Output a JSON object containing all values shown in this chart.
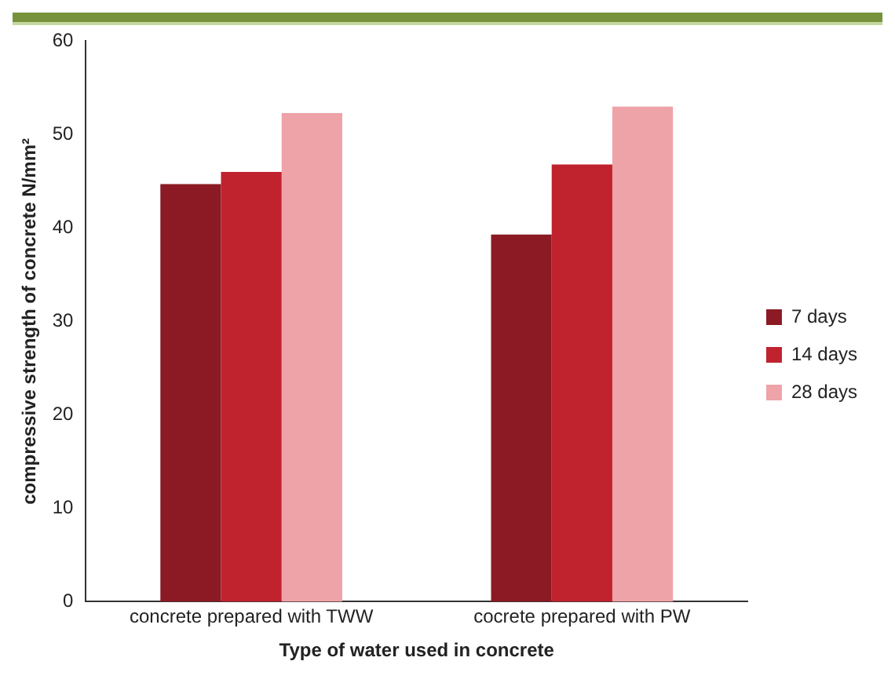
{
  "chart_data": {
    "type": "bar",
    "xlabel": "Type of water used in concrete",
    "ylabel": "compressive strength of concrete N/mm²",
    "categories": [
      "concrete prepared with TWW",
      "cocrete prepared with PW"
    ],
    "series": [
      {
        "name": "7 days",
        "color": "#8b1a24",
        "values": [
          44.7,
          39.3
        ]
      },
      {
        "name": "14 days",
        "color": "#c0222e",
        "values": [
          46,
          46.8
        ]
      },
      {
        "name": "28 days",
        "color": "#eea3a8",
        "values": [
          52.3,
          53
        ]
      }
    ],
    "ylim": [
      0,
      60
    ],
    "yticks": [
      0,
      10,
      20,
      30,
      40,
      50,
      60
    ],
    "grid": false,
    "legend": "right"
  }
}
